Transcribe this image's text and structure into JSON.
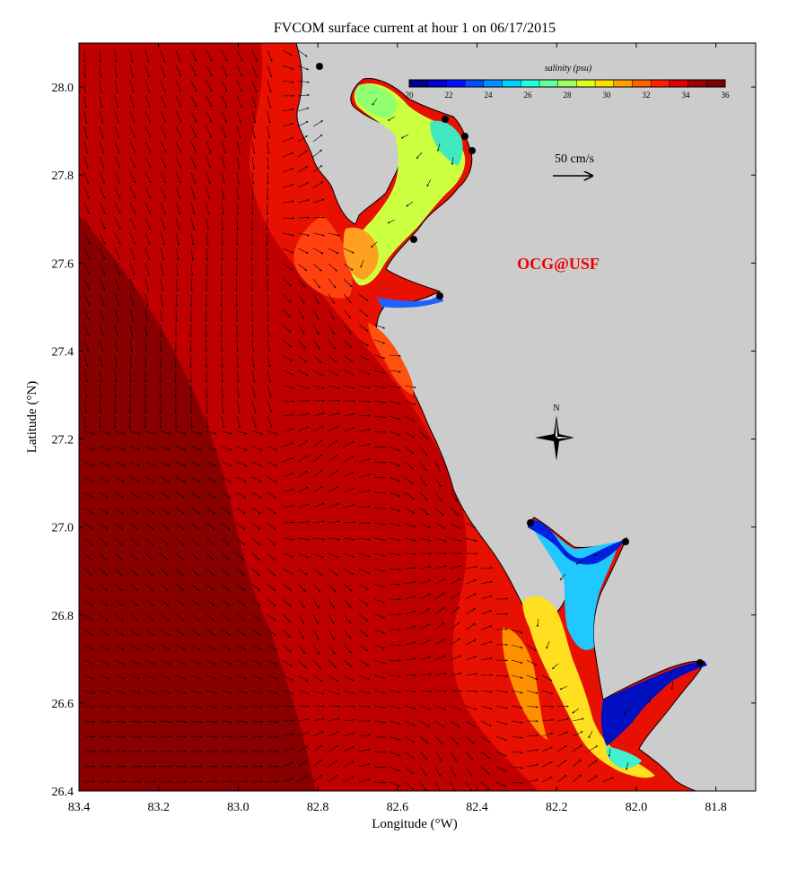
{
  "title": "FVCOM surface current at hour 1 on 06/17/2015",
  "colors": {
    "land": "#cccccc",
    "frame": "#000000",
    "brand": "#ee0000",
    "arrow": "#000000"
  },
  "axes": {
    "xlabel": "Longitude (°W)",
    "ylabel": "Latitude (°N)",
    "x_ticks": [
      "83.4",
      "83.2",
      "83.0",
      "82.8",
      "82.6",
      "82.4",
      "82.2",
      "82.0",
      "81.8"
    ],
    "y_ticks": [
      "28.0",
      "27.8",
      "27.6",
      "27.4",
      "27.2",
      "27.0",
      "26.8",
      "26.6",
      "26.4"
    ],
    "xlim": [
      83.4,
      81.7
    ],
    "ylim": [
      26.4,
      28.1
    ]
  },
  "colorbar": {
    "label": "salinity (psu)",
    "ticks": [
      "20",
      "22",
      "24",
      "26",
      "28",
      "30",
      "32",
      "34",
      "36"
    ],
    "range": [
      20,
      36
    ],
    "colors": [
      "#00008f",
      "#0000cf",
      "#0010ff",
      "#0050ff",
      "#0090ff",
      "#00d0ff",
      "#20ffdf",
      "#60ff9f",
      "#a0ff5f",
      "#dfff20",
      "#ffdf00",
      "#ffa000",
      "#ff6000",
      "#ff2000",
      "#df0000",
      "#a00000",
      "#800000"
    ]
  },
  "scale_arrow": {
    "label": "50 cm/s",
    "value_cm_s": 50
  },
  "watermark": "OCG@USF",
  "compass": {
    "label": "N"
  }
}
